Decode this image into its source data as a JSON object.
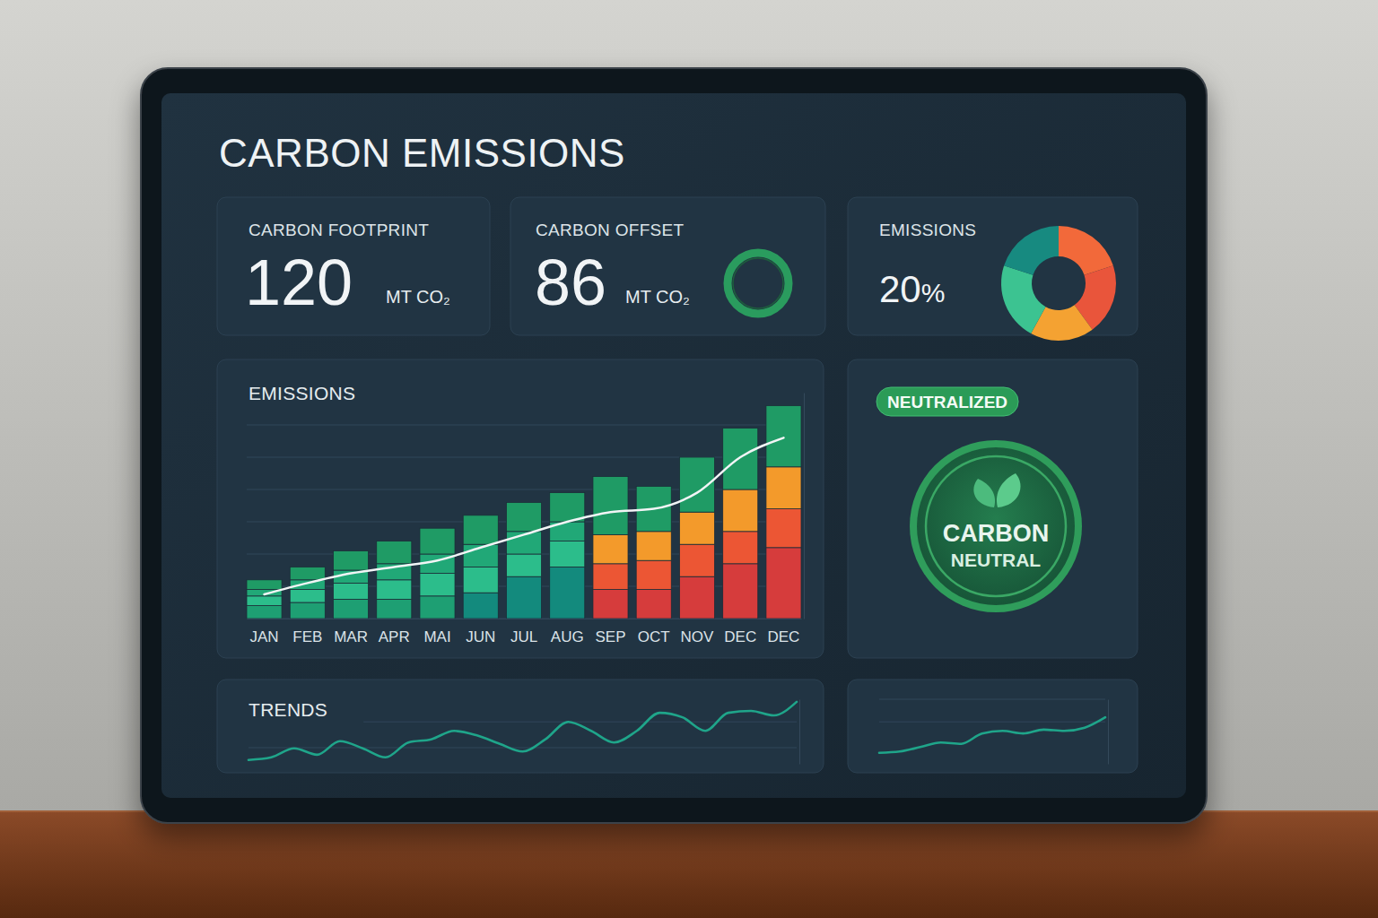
{
  "dashboard": {
    "title": "CARBON EMISSIONS",
    "cards": [
      {
        "label": "CARBON FOOTPRINT",
        "value": 120,
        "unit": "MT CO₂"
      },
      {
        "label": "CARBON OFFSET",
        "value": 86,
        "unit": "MT CO₂"
      },
      {
        "label": "EMISSIONS",
        "value": 20,
        "unit": "%"
      }
    ],
    "badge": {
      "tag": "NEUTRALIZED",
      "lines": [
        "CARBON",
        "NEUTRAL"
      ]
    }
  },
  "chart_data": [
    {
      "type": "pie",
      "values": [
        20,
        20,
        18,
        22,
        20
      ],
      "colors": [
        "#f2693a",
        "#e9553b",
        "#f4a232",
        "#3cc391",
        "#178a80"
      ]
    },
    {
      "type": "bar",
      "title": "EMISSIONS",
      "categories": [
        "JAN",
        "FEB",
        "MAR",
        "APR",
        "MAI",
        "JUN",
        "JUL",
        "AUG",
        "SEP",
        "OCT",
        "NOV",
        "DEC",
        "DEC"
      ],
      "stacked": true,
      "grid": true,
      "tick_labels": "x",
      "ylim": [
        0,
        70
      ],
      "yticks": [
        0,
        10,
        20,
        30,
        40,
        50,
        60
      ],
      "series": [
        {
          "type": "bar",
          "colors": [
            "#1e9f73",
            "#1e9f73",
            "#1e9f73",
            "#1e9f73",
            "#1e9f73",
            "#138a7d",
            "#138a7d",
            "#138a7d",
            "#d63c3c",
            "#d63c3c",
            "#d63c3c",
            "#d63c3c",
            "#d63c3c"
          ],
          "values": [
            4,
            5,
            6,
            6,
            7,
            8,
            13,
            16,
            9,
            9,
            13,
            17,
            22
          ]
        },
        {
          "type": "bar",
          "colors": [
            "#2cbd8b",
            "#2cbd8b",
            "#2cbd8b",
            "#2cbd8b",
            "#2cbd8b",
            "#2cbd8b",
            "#2cbd8b",
            "#2cbd8b",
            "#ec5634",
            "#ec5634",
            "#ec5634",
            "#ec5634",
            "#ec5634"
          ],
          "values": [
            3,
            4,
            5,
            6,
            7,
            8,
            7,
            8,
            8,
            9,
            10,
            10,
            12
          ]
        },
        {
          "type": "bar",
          "colors": [
            "#21a877",
            "#21a877",
            "#21a877",
            "#21a877",
            "#21a877",
            "#21a877",
            "#21a877",
            "#21a877",
            "#f39a2b",
            "#f39a2b",
            "#f39a2b",
            "#f39a2b",
            "#f39a2b"
          ],
          "values": [
            2,
            3,
            4,
            5,
            6,
            7,
            7,
            6,
            9,
            9,
            10,
            13,
            13
          ]
        },
        {
          "type": "bar",
          "color": "#1f9b65",
          "values": [
            3,
            4,
            6,
            7,
            8,
            9,
            9,
            9,
            18,
            14,
            17,
            19,
            19
          ]
        },
        {
          "type": "line",
          "color": "#f2f5f6",
          "values": [
            7.5,
            11,
            14,
            16,
            18,
            22,
            26,
            30,
            33,
            34,
            39,
            50,
            56
          ]
        }
      ]
    },
    {
      "type": "line",
      "title": "TRENDS",
      "categories": [
        null,
        null,
        null,
        null,
        null,
        null,
        null,
        null,
        null,
        null,
        null,
        null,
        null,
        null,
        null,
        null,
        null,
        null,
        null,
        null,
        null,
        null,
        null,
        null,
        null
      ],
      "values": [
        0.6,
        1.0,
        2.4,
        1.4,
        3.5,
        2.4,
        1.0,
        3.3,
        3.8,
        5.1,
        4.4,
        3.1,
        1.9,
        3.8,
        6.5,
        5.1,
        3.3,
        5.1,
        7.9,
        7.2,
        5.1,
        7.9,
        8.2,
        7.5,
        9.6
      ],
      "color": "#1fa58a",
      "ylim": [
        0,
        10
      ],
      "yticks": [
        2.5,
        6.5
      ],
      "grid": true,
      "tick_labels": false
    },
    {
      "type": "line",
      "categories": [
        null,
        null,
        null,
        null,
        null,
        null,
        null,
        null,
        null,
        null,
        null,
        null
      ],
      "values": [
        1.7,
        1.9,
        2.6,
        3.3,
        3.1,
        4.7,
        5.1,
        4.7,
        5.3,
        5.1,
        5.6,
        7.2
      ],
      "color": "#1fa58a",
      "ylim": [
        0,
        10
      ],
      "yticks": [
        6.5,
        10
      ],
      "grid": true,
      "tick_labels": false
    }
  ]
}
